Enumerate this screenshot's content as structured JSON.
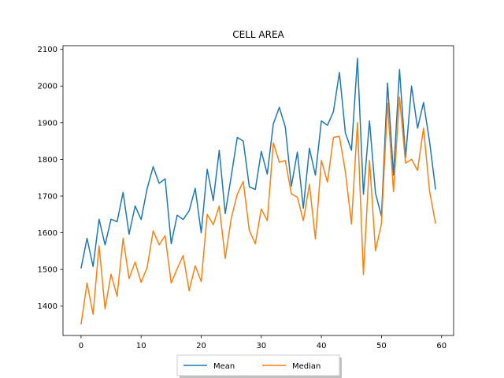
{
  "chart_data": {
    "type": "line",
    "title": "CELL AREA",
    "xlabel": "",
    "ylabel": "",
    "xlim": [
      -3,
      62
    ],
    "ylim": [
      1320,
      2110
    ],
    "xticks": [
      0,
      10,
      20,
      30,
      40,
      50,
      60
    ],
    "yticks": [
      1400,
      1500,
      1600,
      1700,
      1800,
      1900,
      2000,
      2100
    ],
    "grid": false,
    "legend_position": "bottom-center",
    "x": [
      0,
      1,
      2,
      3,
      4,
      5,
      6,
      7,
      8,
      9,
      10,
      11,
      12,
      13,
      14,
      15,
      16,
      17,
      18,
      19,
      20,
      21,
      22,
      23,
      24,
      25,
      26,
      27,
      28,
      29,
      30,
      31,
      32,
      33,
      34,
      35,
      36,
      37,
      38,
      39,
      40,
      41,
      42,
      43,
      44,
      45,
      46,
      47,
      48,
      49,
      50,
      51,
      52,
      53,
      54,
      55,
      56,
      57,
      58,
      59
    ],
    "series": [
      {
        "name": "Mean",
        "color": "#1f77b4",
        "values": [
          1503,
          1585,
          1508,
          1637,
          1567,
          1637,
          1630,
          1710,
          1596,
          1673,
          1636,
          1720,
          1780,
          1735,
          1747,
          1570,
          1648,
          1636,
          1660,
          1721,
          1600,
          1773,
          1688,
          1825,
          1652,
          1755,
          1860,
          1850,
          1725,
          1718,
          1822,
          1760,
          1897,
          1942,
          1888,
          1727,
          1820,
          1667,
          1830,
          1757,
          1905,
          1893,
          1930,
          2037,
          1872,
          1825,
          2075,
          1705,
          1905,
          1708,
          1645,
          2008,
          1757,
          2045,
          1805,
          2000,
          1885,
          1955,
          1848,
          1718
        ]
      },
      {
        "name": "Median",
        "color": "#ff7f0e",
        "values": [
          1350,
          1463,
          1378,
          1565,
          1393,
          1487,
          1427,
          1585,
          1475,
          1520,
          1465,
          1505,
          1605,
          1567,
          1592,
          1463,
          1502,
          1538,
          1442,
          1510,
          1467,
          1650,
          1622,
          1673,
          1530,
          1640,
          1705,
          1740,
          1606,
          1570,
          1665,
          1633,
          1845,
          1792,
          1797,
          1706,
          1697,
          1633,
          1732,
          1583,
          1797,
          1738,
          1860,
          1863,
          1766,
          1624,
          1900,
          1486,
          1797,
          1551,
          1625,
          1953,
          1712,
          1970,
          1790,
          1800,
          1770,
          1885,
          1713,
          1625
        ]
      }
    ]
  }
}
